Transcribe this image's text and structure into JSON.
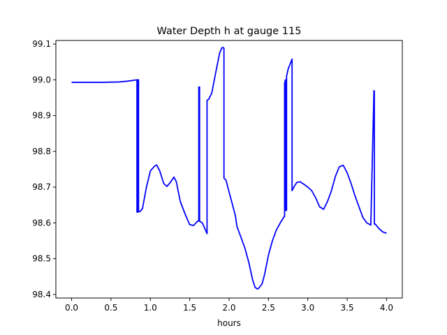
{
  "chart_data": {
    "type": "line",
    "title": "Water Depth h at gauge 115",
    "xlabel": "hours",
    "ylabel": "",
    "xlim": [
      -0.2,
      4.2
    ],
    "ylim": [
      98.39,
      99.11
    ],
    "xticks": [
      0.0,
      0.5,
      1.0,
      1.5,
      2.0,
      2.5,
      3.0,
      3.5,
      4.0
    ],
    "xtick_labels": [
      "0.0",
      "0.5",
      "1.0",
      "1.5",
      "2.0",
      "2.5",
      "3.0",
      "3.5",
      "4.0"
    ],
    "yticks": [
      98.4,
      98.5,
      98.6,
      98.7,
      98.8,
      98.9,
      99.0,
      99.1
    ],
    "ytick_labels": [
      "98.4",
      "98.5",
      "98.6",
      "98.7",
      "98.8",
      "98.9",
      "99.0",
      "99.1"
    ],
    "grid": false,
    "series": [
      {
        "color": "#0000ff",
        "x": [
          0.0,
          0.2,
          0.4,
          0.6,
          0.7,
          0.8,
          0.83,
          0.83,
          0.84,
          0.84,
          0.85,
          0.85,
          0.87,
          0.9,
          0.95,
          1.0,
          1.05,
          1.08,
          1.12,
          1.17,
          1.21,
          1.25,
          1.3,
          1.33,
          1.38,
          1.45,
          1.5,
          1.55,
          1.6,
          1.615,
          1.615,
          1.625,
          1.625,
          1.66,
          1.7,
          1.72,
          1.72,
          1.74,
          1.78,
          1.83,
          1.88,
          1.91,
          1.93,
          1.935,
          1.935,
          1.96,
          2.02,
          2.08,
          2.1,
          2.15,
          2.2,
          2.25,
          2.3,
          2.33,
          2.36,
          2.38,
          2.42,
          2.45,
          2.5,
          2.55,
          2.6,
          2.65,
          2.7,
          2.705,
          2.705,
          2.715,
          2.72,
          2.72,
          2.73,
          2.73,
          2.75,
          2.8,
          2.8,
          2.83,
          2.86,
          2.9,
          2.95,
          3.0,
          3.05,
          3.1,
          3.15,
          3.2,
          3.25,
          3.3,
          3.35,
          3.4,
          3.45,
          3.5,
          3.55,
          3.6,
          3.65,
          3.7,
          3.75,
          3.8,
          3.84,
          3.845,
          3.845,
          3.855,
          3.855,
          3.9,
          3.95,
          4.0
        ],
        "y": [
          98.993,
          98.993,
          98.993,
          98.994,
          98.996,
          98.999,
          99.0,
          98.63,
          98.63,
          99.0,
          99.0,
          98.631,
          98.632,
          98.64,
          98.7,
          98.745,
          98.758,
          98.762,
          98.745,
          98.71,
          98.702,
          98.712,
          98.728,
          98.715,
          98.66,
          98.62,
          98.595,
          98.593,
          98.605,
          98.605,
          98.98,
          98.98,
          98.605,
          98.6,
          98.58,
          98.57,
          98.943,
          98.945,
          98.963,
          99.02,
          99.075,
          99.09,
          99.09,
          99.087,
          98.725,
          98.72,
          98.67,
          98.62,
          98.59,
          98.56,
          98.53,
          98.49,
          98.44,
          98.42,
          98.415,
          98.418,
          98.43,
          98.455,
          98.51,
          98.55,
          98.58,
          98.6,
          98.618,
          98.618,
          98.99,
          99.0,
          99.0,
          98.635,
          98.635,
          99.01,
          99.03,
          99.058,
          98.69,
          98.703,
          98.713,
          98.715,
          98.708,
          98.7,
          98.69,
          98.67,
          98.645,
          98.638,
          98.66,
          98.69,
          98.73,
          98.757,
          98.761,
          98.74,
          98.71,
          98.675,
          98.645,
          98.615,
          98.6,
          98.594,
          98.97,
          98.968,
          98.597,
          98.596,
          98.597,
          98.585,
          98.575,
          98.571
        ]
      }
    ]
  }
}
